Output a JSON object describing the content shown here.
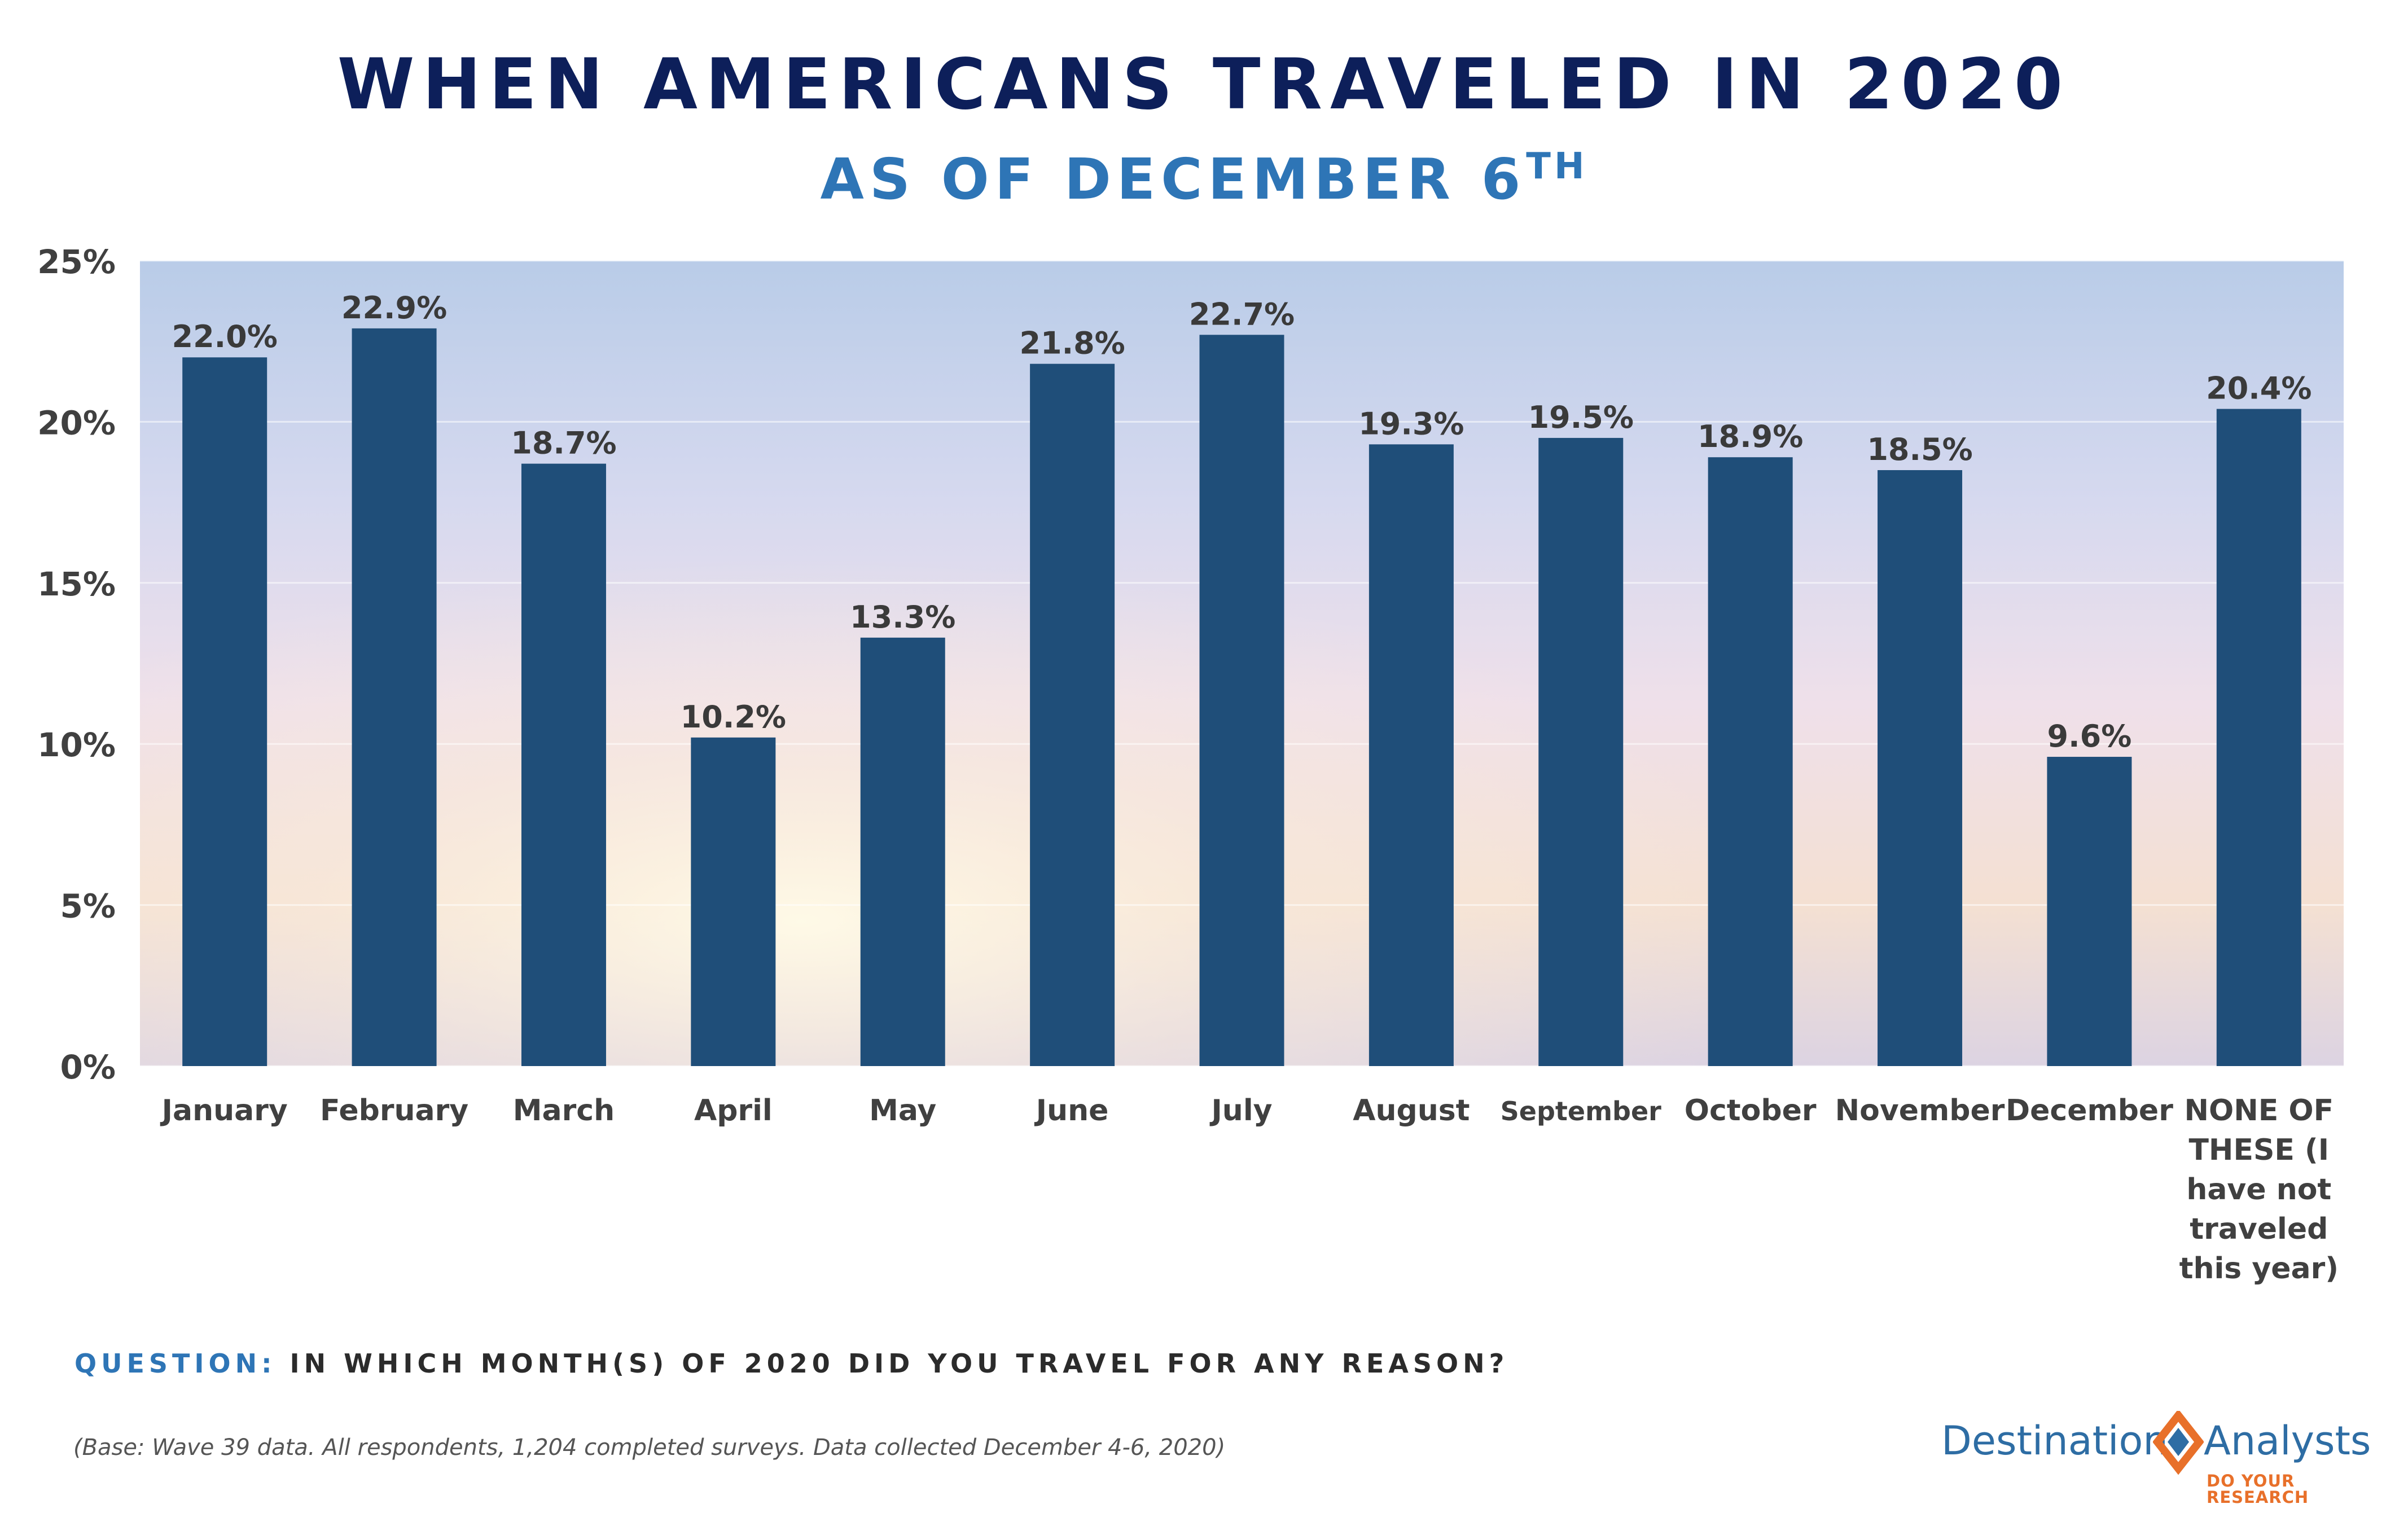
{
  "title": "WHEN AMERICANS TRAVELED IN 2020",
  "subtitle": {
    "text": "AS OF DECEMBER 6",
    "superscript": "TH"
  },
  "chart_data": {
    "type": "bar",
    "title": "WHEN AMERICANS TRAVELED IN 2020",
    "subtitle": "AS OF DECEMBER 6TH",
    "categories": [
      "January",
      "February",
      "March",
      "April",
      "May",
      "June",
      "July",
      "August",
      "September",
      "October",
      "November",
      "December",
      "NONE OF THESE (I have not traveled this year)"
    ],
    "category_label_lines": [
      [
        "January"
      ],
      [
        "February"
      ],
      [
        "March"
      ],
      [
        "April"
      ],
      [
        "May"
      ],
      [
        "June"
      ],
      [
        "July"
      ],
      [
        "August"
      ],
      [
        "September"
      ],
      [
        "October"
      ],
      [
        "November"
      ],
      [
        "December"
      ],
      [
        "NONE OF",
        "THESE (I",
        "have not",
        "traveled",
        "this year)"
      ]
    ],
    "values": [
      22.0,
      22.9,
      18.7,
      10.2,
      13.3,
      21.8,
      22.7,
      19.3,
      19.5,
      18.9,
      18.5,
      9.6,
      20.4
    ],
    "data_labels": [
      "22.0%",
      "22.9%",
      "18.7%",
      "10.2%",
      "13.3%",
      "21.8%",
      "22.7%",
      "19.3%",
      "19.5%",
      "18.9%",
      "18.5%",
      "9.6%",
      "20.4%"
    ],
    "yticks": [
      0,
      5,
      10,
      15,
      20,
      25
    ],
    "ytick_labels": [
      "0%",
      "5%",
      "10%",
      "15%",
      "20%",
      "25%"
    ],
    "ylim": [
      0,
      25
    ],
    "xlabel": "",
    "ylabel": "",
    "grid": true,
    "bar_color": "#1f4e79"
  },
  "question": {
    "label": "QUESTION:",
    "text": "IN WHICH MONTH(S) OF 2020 DID YOU TRAVEL FOR ANY REASON?"
  },
  "base_note": "(Base: Wave 39 data. All respondents, 1,204 completed surveys. Data collected December 4-6, 2020)",
  "logo": {
    "left_word": "Destination",
    "right_word": "Analysts",
    "tagline": "DO YOUR RESEARCH",
    "colors": {
      "blue": "#2e6da4",
      "orange": "#e8702a"
    }
  },
  "colors": {
    "title": "#0d1f5a",
    "subtitle": "#2e75b6",
    "axis_text": "#404040",
    "label_text": "#3a3a3a"
  }
}
